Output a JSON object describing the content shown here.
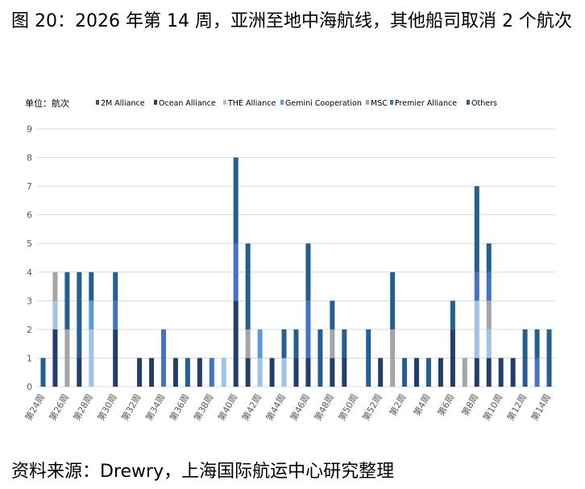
{
  "figure": {
    "title": "图 20：2026 年第 14 周，亚洲至地中海航线，其他船司取消 2 个航次",
    "source": "资料来源：Drewry，上海国际航运中心研究整理"
  },
  "colors": {
    "2M Alliance": "#555555",
    "Ocean Alliance": "#243e6b",
    "THE Alliance": "#9dc3e6",
    "Gemini Cooperation": "#5b9bd5",
    "MSC": "#a5a5a5",
    "Premier Alliance": "#4472c4",
    "Others": "#255e91",
    "grid": "#d9d9d9",
    "axis_text": "#595959"
  },
  "chart_data": {
    "type": "bar",
    "stacked": true,
    "unit_label": "单位：航次",
    "ylim": [
      0,
      9
    ],
    "yticks": [
      0,
      1,
      2,
      3,
      4,
      5,
      6,
      7,
      8,
      9
    ],
    "grid": true,
    "legend_position": "top",
    "categories": [
      "第24周",
      "第25周",
      "第26周",
      "第27周",
      "第28周",
      "第29周",
      "第30周",
      "第31周",
      "第32周",
      "第33周",
      "第34周",
      "第35周",
      "第36周",
      "第37周",
      "第38周",
      "第39周",
      "第40周",
      "第41周",
      "第42周",
      "第43周",
      "第44周",
      "第45周",
      "第46周",
      "第47周",
      "第48周",
      "第49周",
      "第50周",
      "第51周",
      "第52周",
      "第1周",
      "第2周",
      "第3周",
      "第4周",
      "第5周",
      "第6周",
      "第7周",
      "第8周",
      "第9周",
      "第10周",
      "第11周",
      "第12周",
      "第13周",
      "第14周"
    ],
    "tick_labels": [
      "第24周",
      "",
      "第26周",
      "",
      "第28周",
      "",
      "第30周",
      "",
      "第32周",
      "",
      "第34周",
      "",
      "第36周",
      "",
      "第38周",
      "",
      "第40周",
      "",
      "第42周",
      "",
      "第44周",
      "",
      "第46周",
      "",
      "第48周",
      "",
      "第50周",
      "",
      "第52周",
      "",
      "第2周",
      "",
      "第4周",
      "",
      "第6周",
      "",
      "第8周",
      "",
      "第10周",
      "",
      "第12周",
      "",
      "第14周"
    ],
    "series": [
      {
        "name": "2M Alliance",
        "values": [
          0,
          0,
          0,
          0,
          0,
          0,
          0,
          0,
          0,
          0,
          0,
          0,
          0,
          0,
          0,
          0,
          0,
          0,
          0,
          0,
          0,
          0,
          0,
          0,
          0,
          0,
          0,
          0,
          0,
          0,
          0,
          0,
          0,
          0,
          0,
          0,
          0,
          0,
          0,
          0,
          0,
          0,
          0
        ]
      },
      {
        "name": "Ocean Alliance",
        "values": [
          0,
          2,
          0,
          1,
          0,
          0,
          2,
          0,
          1,
          1,
          0,
          1,
          0,
          1,
          0,
          0,
          3,
          1,
          0,
          1,
          0,
          1,
          1,
          0,
          1,
          1,
          0,
          0,
          1,
          0,
          0,
          1,
          0,
          1,
          2,
          0,
          1,
          1,
          1,
          1,
          0,
          0,
          0
        ]
      },
      {
        "name": "THE Alliance",
        "values": [
          0,
          1,
          0,
          0,
          2,
          0,
          0,
          0,
          0,
          0,
          0,
          0,
          0,
          0,
          0,
          1,
          0,
          0,
          1,
          0,
          1,
          0,
          0,
          0,
          0,
          0,
          0,
          0,
          0,
          0,
          0,
          0,
          0,
          0,
          0,
          0,
          2,
          1,
          0,
          0,
          0,
          0,
          0
        ]
      },
      {
        "name": "Gemini Cooperation",
        "values": [
          0,
          0,
          0,
          0,
          1,
          0,
          0,
          0,
          0,
          0,
          0,
          0,
          0,
          0,
          0,
          0,
          0,
          0,
          1,
          0,
          0,
          0,
          0,
          0,
          0,
          0,
          0,
          0,
          0,
          0,
          0,
          0,
          0,
          0,
          0,
          0,
          0,
          0,
          0,
          0,
          0,
          0,
          0
        ]
      },
      {
        "name": "MSC",
        "values": [
          0,
          1,
          2,
          0,
          0,
          0,
          0,
          0,
          0,
          0,
          0,
          0,
          0,
          0,
          0,
          0,
          0,
          1,
          0,
          0,
          0,
          0,
          0,
          0,
          1,
          0,
          0,
          0,
          0,
          2,
          0,
          0,
          0,
          0,
          0,
          1,
          0,
          1,
          0,
          0,
          0,
          0,
          0
        ]
      },
      {
        "name": "Premier Alliance",
        "values": [
          0,
          0,
          0,
          0,
          0,
          0,
          1,
          0,
          0,
          0,
          2,
          0,
          0,
          0,
          1,
          0,
          2,
          0,
          0,
          0,
          0,
          0,
          2,
          0,
          0,
          0,
          0,
          0,
          0,
          0,
          0,
          0,
          0,
          0,
          0,
          0,
          1,
          1,
          0,
          0,
          0,
          1,
          0
        ]
      },
      {
        "name": "Others",
        "values": [
          1,
          0,
          2,
          3,
          1,
          0,
          1,
          0,
          0,
          0,
          0,
          0,
          1,
          0,
          0,
          0,
          3,
          3,
          0,
          0,
          1,
          1,
          2,
          2,
          1,
          1,
          0,
          2,
          0,
          2,
          1,
          0,
          1,
          0,
          1,
          0,
          3,
          1,
          0,
          0,
          2,
          1,
          2
        ]
      }
    ]
  }
}
